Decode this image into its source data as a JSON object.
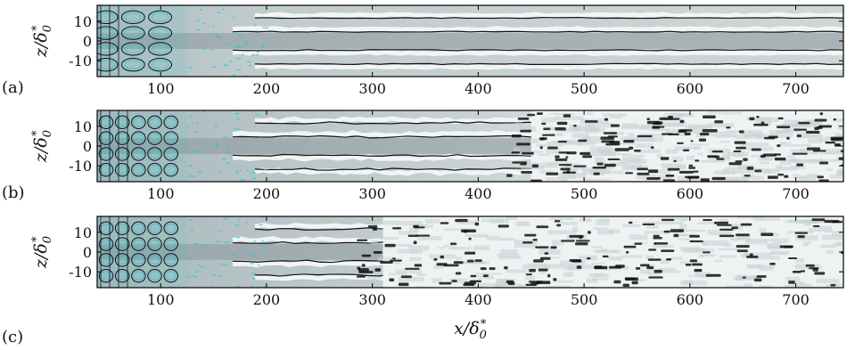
{
  "chart_data": [
    {
      "type": "heatmap",
      "panel_label": "(a)",
      "xlabel": "",
      "ylabel": "z/δ0*",
      "xlim": [
        40,
        745
      ],
      "ylim": [
        -18,
        18
      ],
      "x_ticks": [
        100,
        200,
        300,
        400,
        500,
        600,
        700
      ],
      "y_ticks": [
        10,
        0,
        -10
      ],
      "streaks": [
        -13,
        -6,
        6,
        13
      ],
      "breakdown_x": null
    },
    {
      "type": "heatmap",
      "panel_label": "(b)",
      "xlabel": "",
      "ylabel": "z/δ0*",
      "xlim": [
        40,
        745
      ],
      "ylim": [
        -18,
        18
      ],
      "x_ticks": [
        100,
        200,
        300,
        400,
        500,
        600,
        700
      ],
      "y_ticks": [
        10,
        0,
        -10
      ],
      "streaks": [
        -13,
        -6,
        6,
        13
      ],
      "breakdown_x": 450
    },
    {
      "type": "heatmap",
      "panel_label": "(c)",
      "xlabel": "x/δ0*",
      "ylabel": "z/δ0*",
      "xlim": [
        40,
        745
      ],
      "ylim": [
        -18,
        18
      ],
      "x_ticks": [
        100,
        200,
        300,
        400,
        500,
        600,
        700
      ],
      "y_ticks": [
        10,
        0,
        -10
      ],
      "streaks": [
        -13,
        -6,
        6,
        13
      ],
      "breakdown_x": 310
    }
  ],
  "colors": {
    "streak_low": "#8b979c",
    "streak_high": "#f4f7f7",
    "contour": "#111111",
    "cyan": "#00d0d8"
  }
}
